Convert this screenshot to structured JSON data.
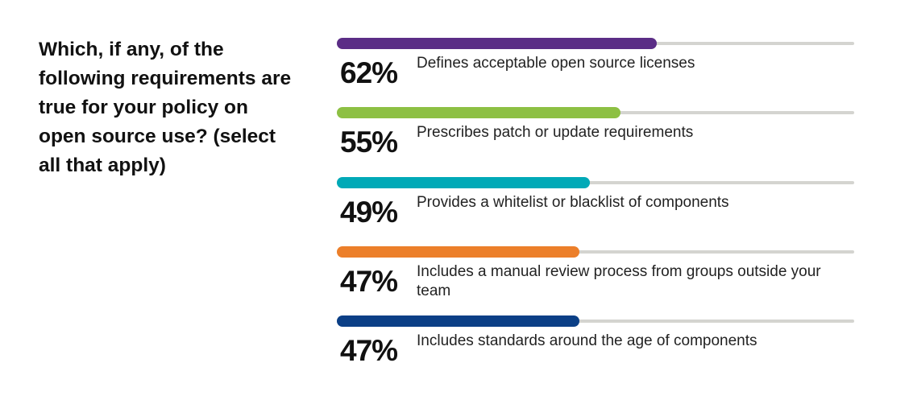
{
  "chart_data": {
    "type": "bar",
    "orientation": "horizontal",
    "title": "Which, if any, of the following requirements are true for your policy on open source use? (select all that apply)",
    "categories": [
      "Defines acceptable open source licenses",
      "Prescribes patch or update requirements",
      "Provides a whitelist or blacklist of components",
      "Includes a manual review process from groups outside your team",
      "Includes standards around the age of components"
    ],
    "values": [
      62,
      55,
      49,
      47,
      47
    ],
    "value_labels": [
      "62%",
      "55%",
      "49%",
      "47%",
      "47%"
    ],
    "xlim": [
      0,
      100
    ],
    "colors": [
      "#5b2d86",
      "#8dc043",
      "#00a9b7",
      "#ec7f2a",
      "#0b3f86"
    ],
    "track_color": "#d4d4d0"
  }
}
